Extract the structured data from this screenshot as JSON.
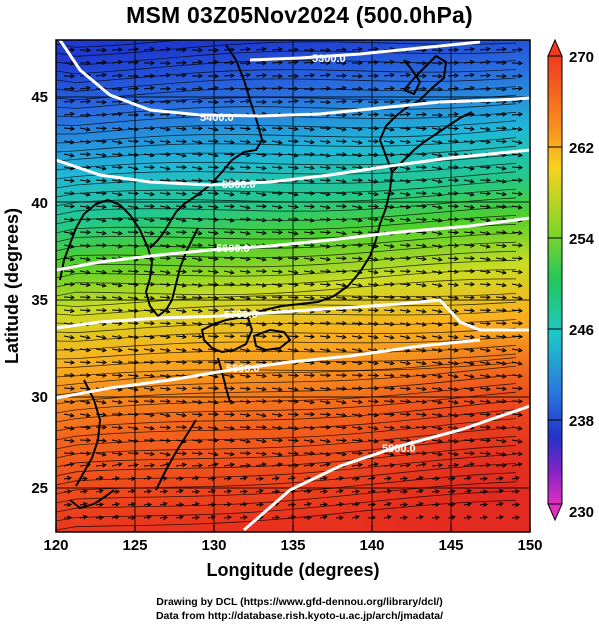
{
  "title": "MSM 03Z05Nov2024 (500.0hPa)",
  "map": {
    "lon_range": [
      120,
      150
    ],
    "lat_range": [
      22.7,
      48
    ],
    "x_ticks": [
      "120",
      "125",
      "130",
      "135",
      "140",
      "145",
      "150"
    ],
    "y_ticks": [
      "25",
      "30",
      "35",
      "40",
      "45"
    ],
    "x_label": "Longitude (degrees)",
    "y_label": "Latitude  (degrees)"
  },
  "colorbar": {
    "min": 230,
    "max": 270,
    "labels": [
      "270",
      "262",
      "254",
      "246",
      "238",
      "230"
    ]
  },
  "contours": [
    {
      "label": "5300.0"
    },
    {
      "label": "5400.0"
    },
    {
      "label": "5500.0"
    },
    {
      "label": "5600.0"
    },
    {
      "label": "5700.0"
    },
    {
      "label": "5800.0"
    },
    {
      "label": "5900.0"
    }
  ],
  "credits": {
    "line1": "Drawing by DCL (https://www.gfd-dennou.org/library/dcl/)",
    "line2": "Data from http://database.rish.kyoto-u.ac.jp/arch/jmadata/"
  }
}
